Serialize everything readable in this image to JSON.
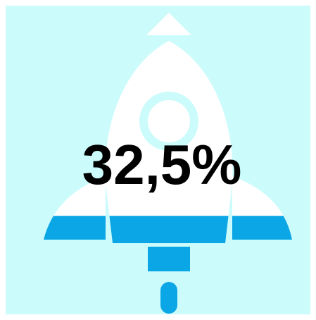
{
  "chart_data": {
    "type": "progress",
    "values": [
      32.5
    ],
    "value_labels": [
      "32,5%"
    ],
    "ylim": [
      0,
      100
    ],
    "color": "#0aa6e6"
  }
}
